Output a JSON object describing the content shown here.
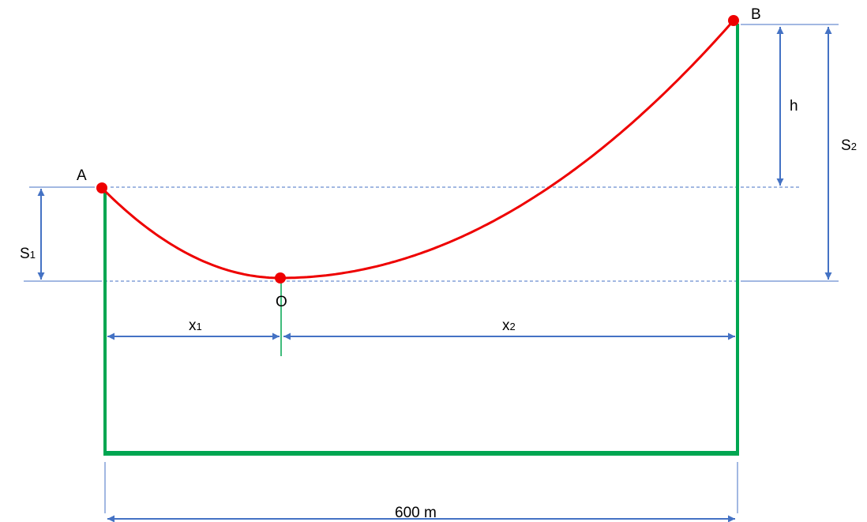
{
  "points": {
    "a": "A",
    "b": "B",
    "o": "O"
  },
  "dimensions": {
    "s1": {
      "main": "S",
      "sub": "1"
    },
    "s2": {
      "main": "S",
      "sub": "2"
    },
    "h": "h",
    "x1": {
      "main": "x",
      "sub": "1"
    },
    "x2": {
      "main": "x",
      "sub": "2"
    },
    "span": "600 m"
  },
  "colors": {
    "cable": "#ee0000",
    "supports": "#00a651",
    "dimension": "#4472c4",
    "point": "#ee0000"
  }
}
